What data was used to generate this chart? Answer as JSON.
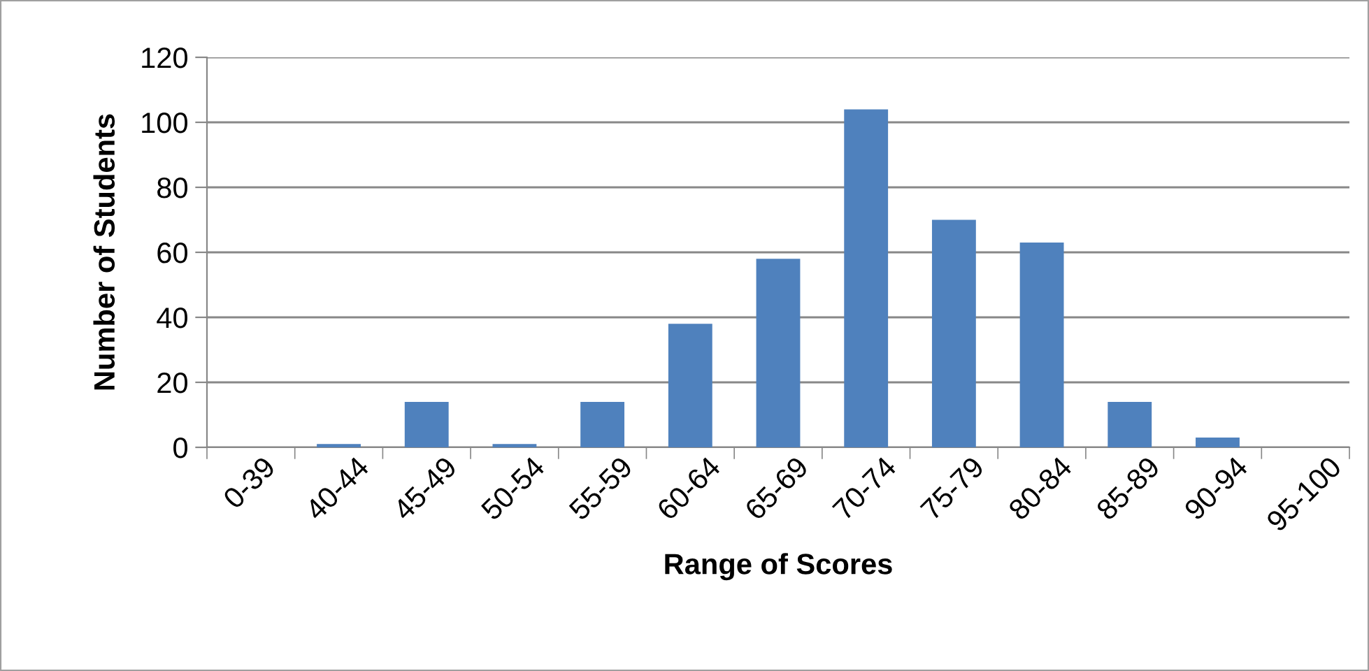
{
  "chart_data": {
    "type": "bar",
    "xlabel": "Range of Scores",
    "ylabel": "Number of Students",
    "categories": [
      "0-39",
      "40-44",
      "45-49",
      "50-54",
      "55-59",
      "60-64",
      "65-69",
      "70-74",
      "75-79",
      "80-84",
      "85-89",
      "90-94",
      "95-100"
    ],
    "values": [
      0,
      1,
      14,
      1,
      14,
      38,
      58,
      104,
      70,
      63,
      14,
      3,
      0
    ],
    "color": "#4f81bd",
    "ylim": [
      0,
      120
    ],
    "yticks": [
      0,
      20,
      40,
      60,
      80,
      100,
      120
    ],
    "grid": "y",
    "legend": false
  }
}
